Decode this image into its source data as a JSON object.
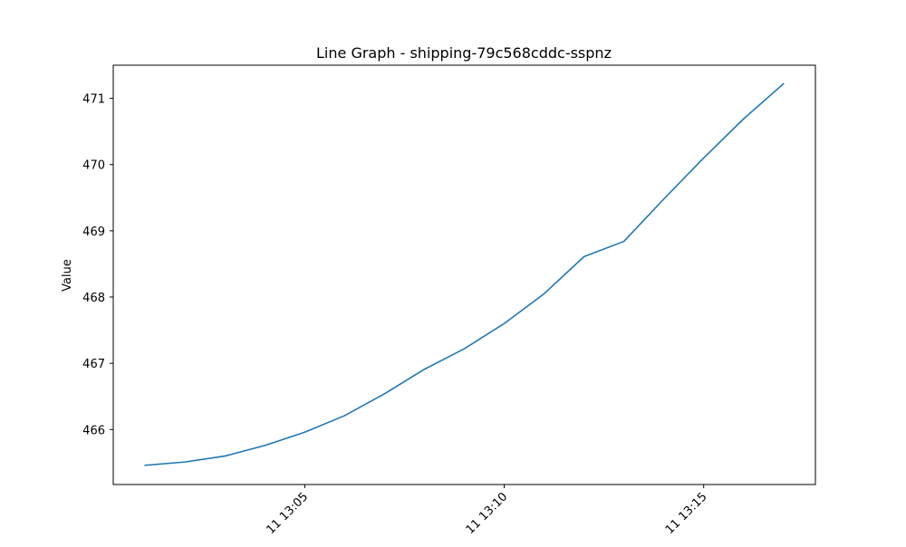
{
  "chart_data": {
    "type": "line",
    "title": "Line Graph - shipping-79c568cddc-sspnz",
    "xlabel": "",
    "ylabel": "Value",
    "x_tick_labels": [
      "11 13:05",
      "11 13:10",
      "11 13:15"
    ],
    "x_tick_times": [
      "13:05",
      "13:10",
      "13:15"
    ],
    "y_ticks": [
      466,
      467,
      468,
      469,
      470,
      471
    ],
    "xlim": [
      "13:00:12",
      "13:17:48"
    ],
    "ylim": [
      465.17,
      471.5
    ],
    "grid": false,
    "series": [
      {
        "color": "#1f77b4",
        "points": [
          {
            "x": "13:01",
            "y": 465.46
          },
          {
            "x": "13:02",
            "y": 465.51
          },
          {
            "x": "13:03",
            "y": 465.6
          },
          {
            "x": "13:04",
            "y": 465.76
          },
          {
            "x": "13:05",
            "y": 465.96
          },
          {
            "x": "13:06",
            "y": 466.21
          },
          {
            "x": "13:07",
            "y": 466.54
          },
          {
            "x": "13:08",
            "y": 466.91
          },
          {
            "x": "13:09",
            "y": 467.22
          },
          {
            "x": "13:10",
            "y": 467.6
          },
          {
            "x": "13:11",
            "y": 468.05
          },
          {
            "x": "13:12",
            "y": 468.61
          },
          {
            "x": "13:13",
            "y": 468.84
          },
          {
            "x": "13:14",
            "y": 469.48
          },
          {
            "x": "13:15",
            "y": 470.1
          },
          {
            "x": "13:16",
            "y": 470.69
          },
          {
            "x": "13:17",
            "y": 471.22
          }
        ]
      }
    ]
  }
}
